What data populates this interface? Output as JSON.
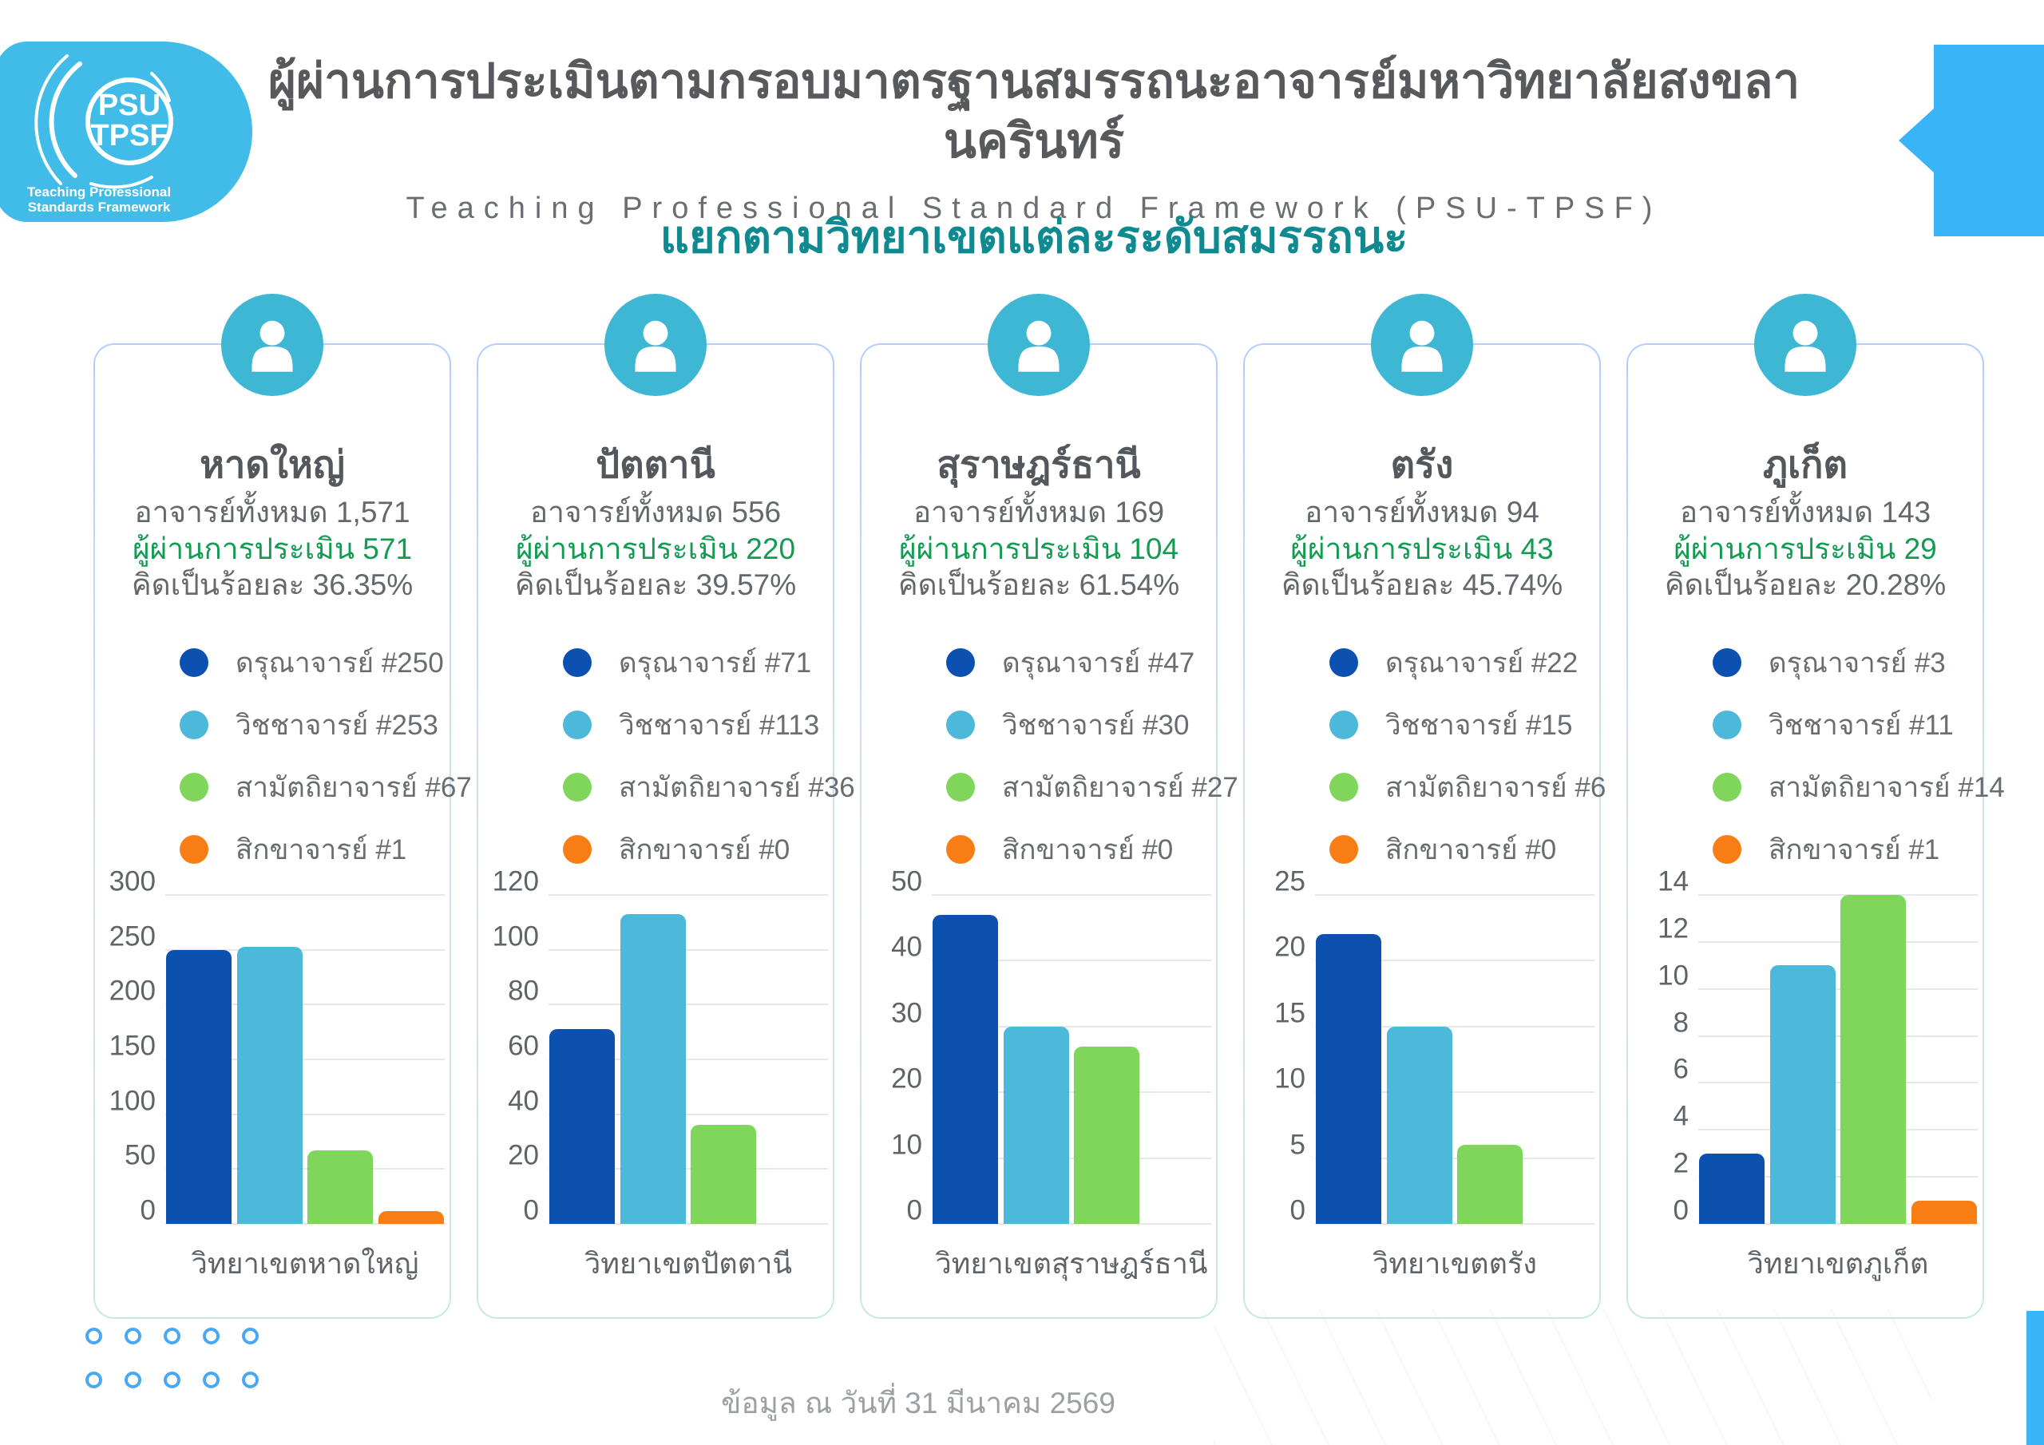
{
  "header": {
    "logo": {
      "acronym_line1": "PSU",
      "acronym_line2": "TPSF",
      "caption_line1": "Teaching Professional",
      "caption_line2": "Standards Framework"
    },
    "title_th": "ผู้ผ่านการประเมินตามกรอบมาตรฐานสมรรถนะอาจารย์มหาวิทยาลัยสงขลานครินทร์",
    "subtitle_en": "Teaching Professional Standard Framework (PSU-TPSF)",
    "section_title": "แยกตามวิทยาเขตแต่ละระดับสมรรถนะ"
  },
  "colors": {
    "logo_blue": "#41bce9",
    "corner_arrow_blue": "#39b4f8",
    "icon_teal": "#3db7d4",
    "section_title_teal": "#0e8a90",
    "passed_green": "#149b52",
    "level_colors": [
      "#0c50b0",
      "#4cb8da",
      "#7fd65a",
      "#f87d14"
    ],
    "decoration_blue": "#49a8f3"
  },
  "cards": [
    {
      "campus": "หาดใหญ่",
      "total": "อาจารย์ทั้งหมด 1,571",
      "passed": "ผู้ผ่านการประเมิน 571",
      "percent": "คิดเป็นร้อยละ 36.35%"
    },
    {
      "campus": "ปัตตานี",
      "total": "อาจารย์ทั้งหมด 556",
      "passed": "ผู้ผ่านการประเมิน 220",
      "percent": "คิดเป็นร้อยละ 39.57%"
    },
    {
      "campus": "สุราษฎร์ธานี",
      "total": "อาจารย์ทั้งหมด 169",
      "passed": "ผู้ผ่านการประเมิน 104",
      "percent": "คิดเป็นร้อยละ 61.54%"
    },
    {
      "campus": "ตรัง",
      "total": "อาจารย์ทั้งหมด 94",
      "passed": "ผู้ผ่านการประเมิน 43",
      "percent": "คิดเป็นร้อยละ 45.74%"
    },
    {
      "campus": "ภูเก็ต",
      "total": "อาจารย์ทั้งหมด 143",
      "passed": "ผู้ผ่านการประเมิน 29",
      "percent": "คิดเป็นร้อยละ 20.28%"
    }
  ],
  "chart_data": [
    {
      "type": "bar",
      "title": "วิทยาเขตหาดใหญ่",
      "categories": [
        "ดรุณาจารย์",
        "วิชชาจารย์",
        "สามัตถิยาจารย์",
        "สิกขาจารย์"
      ],
      "values": [
        250,
        253,
        67,
        1
      ],
      "ylim": [
        0,
        300
      ],
      "yticks": [
        0,
        50,
        100,
        150,
        200,
        250,
        300
      ],
      "grid": true,
      "legend_position": "above",
      "bar_colors": [
        "#0c50b0",
        "#4cb8da",
        "#7fd65a",
        "#f87d14"
      ]
    },
    {
      "type": "bar",
      "title": "วิทยาเขตปัตตานี",
      "categories": [
        "ดรุณาจารย์",
        "วิชชาจารย์",
        "สามัตถิยาจารย์",
        "สิกขาจารย์"
      ],
      "values": [
        71,
        113,
        36,
        0
      ],
      "ylim": [
        0,
        120
      ],
      "yticks": [
        0,
        20,
        40,
        60,
        80,
        100,
        120
      ],
      "grid": true,
      "legend_position": "above",
      "bar_colors": [
        "#0c50b0",
        "#4cb8da",
        "#7fd65a",
        "#f87d14"
      ]
    },
    {
      "type": "bar",
      "title": "วิทยาเขตสุราษฎร์ธานี",
      "categories": [
        "ดรุณาจารย์",
        "วิชชาจารย์",
        "สามัตถิยาจารย์",
        "สิกขาจารย์"
      ],
      "values": [
        47,
        30,
        27,
        0
      ],
      "ylim": [
        0,
        50
      ],
      "yticks": [
        0,
        10,
        20,
        30,
        40,
        50
      ],
      "grid": true,
      "legend_position": "above",
      "bar_colors": [
        "#0c50b0",
        "#4cb8da",
        "#7fd65a",
        "#f87d14"
      ]
    },
    {
      "type": "bar",
      "title": "วิทยาเขตตรัง",
      "categories": [
        "ดรุณาจารย์",
        "วิชชาจารย์",
        "สามัตถิยาจารย์",
        "สิกขาจารย์"
      ],
      "values": [
        22,
        15,
        6,
        0
      ],
      "ylim": [
        0,
        25
      ],
      "yticks": [
        0,
        5,
        10,
        15,
        20,
        25
      ],
      "grid": true,
      "legend_position": "above",
      "bar_colors": [
        "#0c50b0",
        "#4cb8da",
        "#7fd65a",
        "#f87d14"
      ]
    },
    {
      "type": "bar",
      "title": "วิทยาเขตภูเก็ต",
      "categories": [
        "ดรุณาจารย์",
        "วิชชาจารย์",
        "สามัตถิยาจารย์",
        "สิกขาจารย์"
      ],
      "values": [
        3,
        11,
        14,
        1
      ],
      "ylim": [
        0,
        14
      ],
      "yticks": [
        0,
        2,
        4,
        6,
        8,
        10,
        12,
        14
      ],
      "grid": true,
      "legend_position": "above",
      "bar_colors": [
        "#0c50b0",
        "#4cb8da",
        "#7fd65a",
        "#f87d14"
      ]
    }
  ],
  "footer": "ข้อมูล ณ วันที่ 31 มีนาคม 2569"
}
